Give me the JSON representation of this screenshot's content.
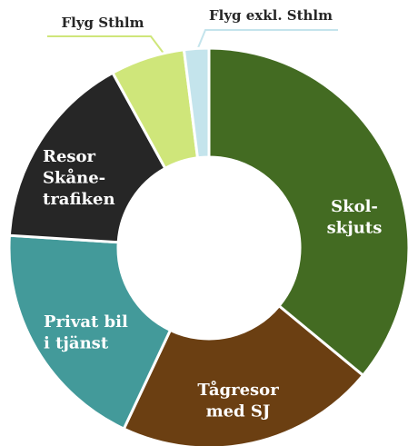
{
  "chart_data": {
    "type": "donut",
    "categories": [
      "Skol-\nskjuts",
      "Tågresor\nmed SJ",
      "Privat bil\ni tjänst",
      "Resor\nSkåne-\ntrafiken",
      "Flyg Sthlm",
      "Flyg exkl. Sthlm"
    ],
    "values": [
      36,
      21,
      19,
      16,
      6,
      2
    ],
    "colors": [
      "#436b22",
      "#6b3f12",
      "#439a9a",
      "#262626",
      "#cfe67a",
      "#c4e4ec"
    ]
  }
}
